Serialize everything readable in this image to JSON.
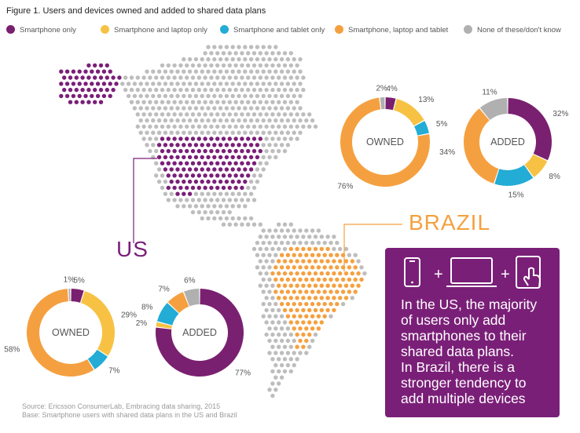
{
  "figure_title": "Figure 1. Users and devices owned and added to shared data plans",
  "legend": [
    {
      "label": "Smartphone only",
      "color": "#7a2070"
    },
    {
      "label": "Smartphone and laptop only",
      "color": "#f7c244"
    },
    {
      "label": "Smartphone and tablet only",
      "color": "#22acd6"
    },
    {
      "label": "Smartphone, laptop and tablet",
      "color": "#f5a040"
    },
    {
      "label": "None of these/don't know",
      "color": "#b0b0b0"
    }
  ],
  "map": {
    "us_label": "US",
    "brazil_label": "BRAZIL",
    "dot_color": "#bdbdbd",
    "us_color": "#7a1f78",
    "brazil_color": "#f5a040"
  },
  "callout": {
    "lines": [
      "In the US, the majority",
      "of users only add",
      "smartphones to their",
      "shared data plans.",
      "In Brazil, there is a",
      "stronger tendency to",
      "add multiple devices"
    ],
    "plus": "+",
    "background": "#7a1f78"
  },
  "source": {
    "line1": "Source: Ericsson ConsumerLab, Embracing data sharing, 2015",
    "line2": "Base: Smartphone users with shared data plans in the US and Brazil"
  },
  "chart_data": [
    {
      "type": "pie",
      "title": "OWNED",
      "region": "Brazil",
      "categories": [
        "Smartphone only",
        "Smartphone and laptop only",
        "Smartphone and tablet only",
        "Smartphone, laptop and tablet",
        "None of these/don't know"
      ],
      "values": [
        4,
        13,
        5,
        76,
        2
      ],
      "labels": [
        "4%",
        "13%",
        "5%",
        "76%",
        "2%"
      ]
    },
    {
      "type": "pie",
      "title": "ADDED",
      "region": "Brazil",
      "categories": [
        "Smartphone only",
        "Smartphone and laptop only",
        "Smartphone and tablet only",
        "Smartphone, laptop and tablet",
        "None of these/don't know"
      ],
      "values": [
        32,
        8,
        15,
        34,
        11
      ],
      "labels": [
        "32%",
        "8%",
        "15%",
        "34%",
        "11%"
      ]
    },
    {
      "type": "pie",
      "title": "OWNED",
      "region": "US",
      "categories": [
        "Smartphone only",
        "Smartphone and laptop only",
        "Smartphone and tablet only",
        "Smartphone, laptop and tablet",
        "None of these/don't know"
      ],
      "values": [
        5,
        29,
        7,
        58,
        1
      ],
      "labels": [
        "5%",
        "29%",
        "7%",
        "58%",
        "1%"
      ]
    },
    {
      "type": "pie",
      "title": "ADDED",
      "region": "US",
      "categories": [
        "Smartphone only",
        "Smartphone and laptop only",
        "Smartphone and tablet only",
        "Smartphone, laptop and tablet",
        "None of these/don't know"
      ],
      "values": [
        77,
        2,
        8,
        7,
        6
      ],
      "labels": [
        "77%",
        "2%",
        "8%",
        "7%",
        "6%"
      ]
    }
  ]
}
